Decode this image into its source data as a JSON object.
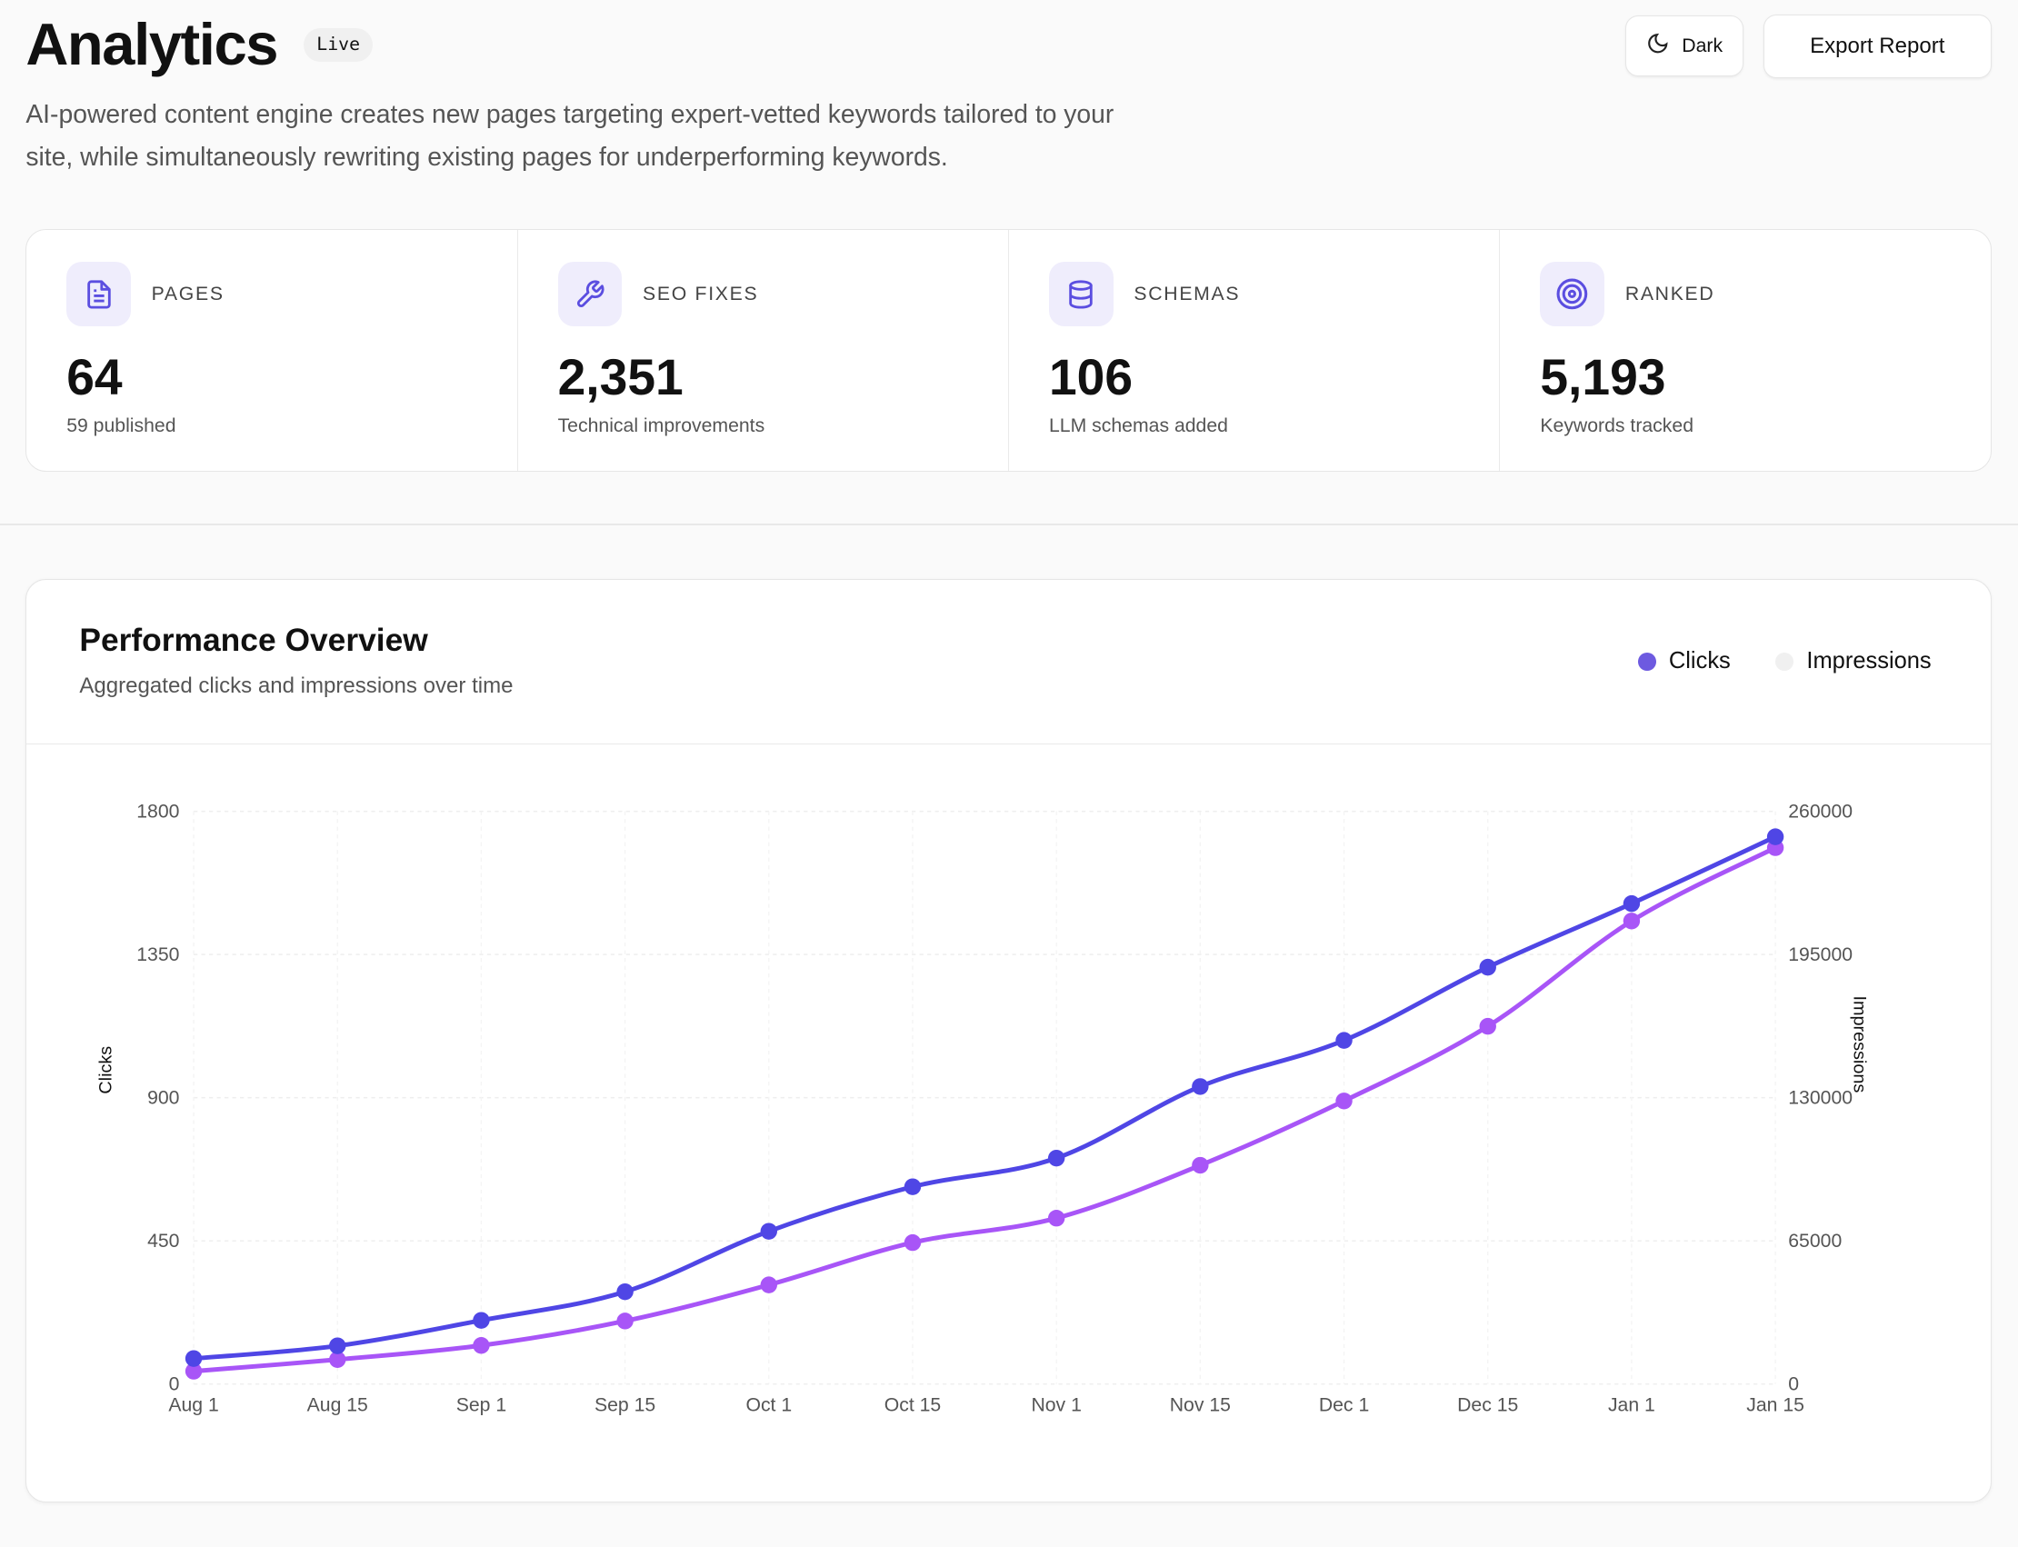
{
  "header": {
    "title": "Analytics",
    "badge": "Live",
    "dark_label": "Dark",
    "export_label": "Export Report",
    "description": "AI-powered content engine creates new pages targeting expert-vetted keywords tailored to your site, while simultaneously rewriting existing pages for underperforming keywords."
  },
  "stats": [
    {
      "label": "PAGES",
      "value": "64",
      "sub": "59 published",
      "icon": "file-text-icon"
    },
    {
      "label": "SEO FIXES",
      "value": "2,351",
      "sub": "Technical improvements",
      "icon": "wrench-icon"
    },
    {
      "label": "SCHEMAS",
      "value": "106",
      "sub": "LLM schemas added",
      "icon": "database-icon"
    },
    {
      "label": "RANKED",
      "value": "5,193",
      "sub": "Keywords tracked",
      "icon": "target-icon"
    }
  ],
  "colors": {
    "accent": "#4f46e5",
    "impressions": "#a855f7",
    "icon_bg": "#efedfc"
  },
  "chart_data": {
    "type": "line",
    "title": "Performance Overview",
    "subtitle": "Aggregated clicks and impressions over time",
    "legend": [
      {
        "name": "Clicks",
        "color": "#6d5ae0"
      },
      {
        "name": "Impressions",
        "color": "#f0f0f0"
      }
    ],
    "x": [
      "Aug 1",
      "Aug 15",
      "Sep 1",
      "Sep 15",
      "Oct 1",
      "Oct 15",
      "Nov 1",
      "Nov 15",
      "Dec 1",
      "Dec 15",
      "Jan 1",
      "Jan 15"
    ],
    "ylabel": "Clicks",
    "y2label": "Impressions",
    "ylim": [
      0,
      1800
    ],
    "yticks": [
      "0",
      "450",
      "900",
      "1350",
      "1800"
    ],
    "y2lim": [
      0,
      260000
    ],
    "y2ticks": [
      "0",
      "65000",
      "130000",
      "195000",
      "260000"
    ],
    "series": [
      {
        "name": "Clicks",
        "axis": "left",
        "color": "#4f46e5",
        "values": [
          80,
          120,
          200,
          290,
          480,
          620,
          710,
          935,
          1080,
          1310,
          1510,
          1720
        ]
      },
      {
        "name": "Impressions",
        "axis": "right",
        "color": "#a855f7",
        "values": [
          5800,
          11100,
          17500,
          28600,
          45000,
          64200,
          75300,
          99300,
          128500,
          162400,
          210200,
          243500
        ]
      }
    ]
  }
}
